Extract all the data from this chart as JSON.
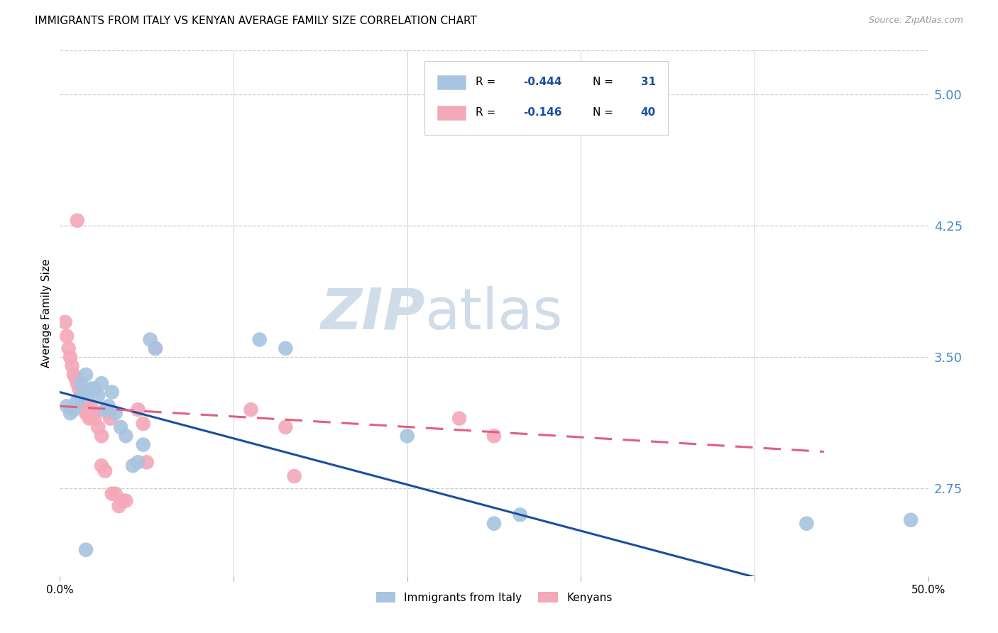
{
  "title": "IMMIGRANTS FROM ITALY VS KENYAN AVERAGE FAMILY SIZE CORRELATION CHART",
  "source": "Source: ZipAtlas.com",
  "ylabel": "Average Family Size",
  "right_yticks": [
    2.75,
    3.5,
    4.25,
    5.0
  ],
  "legend_label_blue": "Immigrants from Italy",
  "legend_label_pink": "Kenyans",
  "blue_scatter": [
    [
      0.004,
      3.22
    ],
    [
      0.006,
      3.18
    ],
    [
      0.008,
      3.2
    ],
    [
      0.01,
      3.25
    ],
    [
      0.012,
      3.35
    ],
    [
      0.013,
      3.28
    ],
    [
      0.015,
      3.4
    ],
    [
      0.016,
      3.3
    ],
    [
      0.018,
      3.32
    ],
    [
      0.02,
      3.32
    ],
    [
      0.022,
      3.28
    ],
    [
      0.024,
      3.35
    ],
    [
      0.026,
      3.2
    ],
    [
      0.028,
      3.22
    ],
    [
      0.03,
      3.3
    ],
    [
      0.032,
      3.18
    ],
    [
      0.035,
      3.1
    ],
    [
      0.038,
      3.05
    ],
    [
      0.042,
      2.88
    ],
    [
      0.045,
      2.9
    ],
    [
      0.048,
      3.0
    ],
    [
      0.052,
      3.6
    ],
    [
      0.055,
      3.55
    ],
    [
      0.115,
      3.6
    ],
    [
      0.13,
      3.55
    ],
    [
      0.2,
      3.05
    ],
    [
      0.25,
      2.55
    ],
    [
      0.265,
      2.6
    ],
    [
      0.43,
      2.55
    ],
    [
      0.49,
      2.57
    ],
    [
      0.015,
      2.4
    ]
  ],
  "pink_scatter": [
    [
      0.003,
      3.7
    ],
    [
      0.004,
      3.62
    ],
    [
      0.005,
      3.55
    ],
    [
      0.006,
      3.5
    ],
    [
      0.007,
      3.45
    ],
    [
      0.008,
      3.4
    ],
    [
      0.009,
      3.38
    ],
    [
      0.01,
      3.35
    ],
    [
      0.011,
      3.32
    ],
    [
      0.012,
      3.28
    ],
    [
      0.013,
      3.25
    ],
    [
      0.014,
      3.22
    ],
    [
      0.015,
      3.2
    ],
    [
      0.016,
      3.18
    ],
    [
      0.017,
      3.15
    ],
    [
      0.018,
      3.22
    ],
    [
      0.019,
      3.18
    ],
    [
      0.02,
      3.15
    ],
    [
      0.022,
      3.1
    ],
    [
      0.024,
      3.05
    ],
    [
      0.024,
      2.88
    ],
    [
      0.026,
      2.85
    ],
    [
      0.028,
      3.18
    ],
    [
      0.029,
      3.15
    ],
    [
      0.03,
      2.72
    ],
    [
      0.032,
      2.72
    ],
    [
      0.034,
      2.65
    ],
    [
      0.036,
      2.68
    ],
    [
      0.038,
      2.68
    ],
    [
      0.01,
      4.28
    ],
    [
      0.045,
      3.2
    ],
    [
      0.048,
      3.12
    ],
    [
      0.05,
      2.9
    ],
    [
      0.055,
      3.55
    ],
    [
      0.11,
      3.2
    ],
    [
      0.13,
      3.1
    ],
    [
      0.135,
      2.82
    ],
    [
      0.23,
      3.15
    ],
    [
      0.25,
      3.05
    ],
    [
      0.015,
      3.18
    ]
  ],
  "blue_line_x": [
    0.0,
    0.5
  ],
  "blue_line_y": [
    3.3,
    1.98
  ],
  "pink_line_x": [
    0.0,
    0.44
  ],
  "pink_line_y": [
    3.22,
    2.96
  ],
  "xlim": [
    0.0,
    0.5
  ],
  "ylim": [
    2.25,
    5.25
  ],
  "scatter_color_blue": "#a8c4e0",
  "scatter_color_pink": "#f4a8b8",
  "line_color_blue": "#1a4fa0",
  "line_color_pink": "#e06080",
  "bg_color": "#ffffff",
  "grid_color": "#cccccc",
  "title_fontsize": 11,
  "source_fontsize": 9,
  "axis_label_fontsize": 10,
  "tick_fontsize": 11,
  "right_tick_color": "#4488cc",
  "watermark_color": "#d0dce8"
}
